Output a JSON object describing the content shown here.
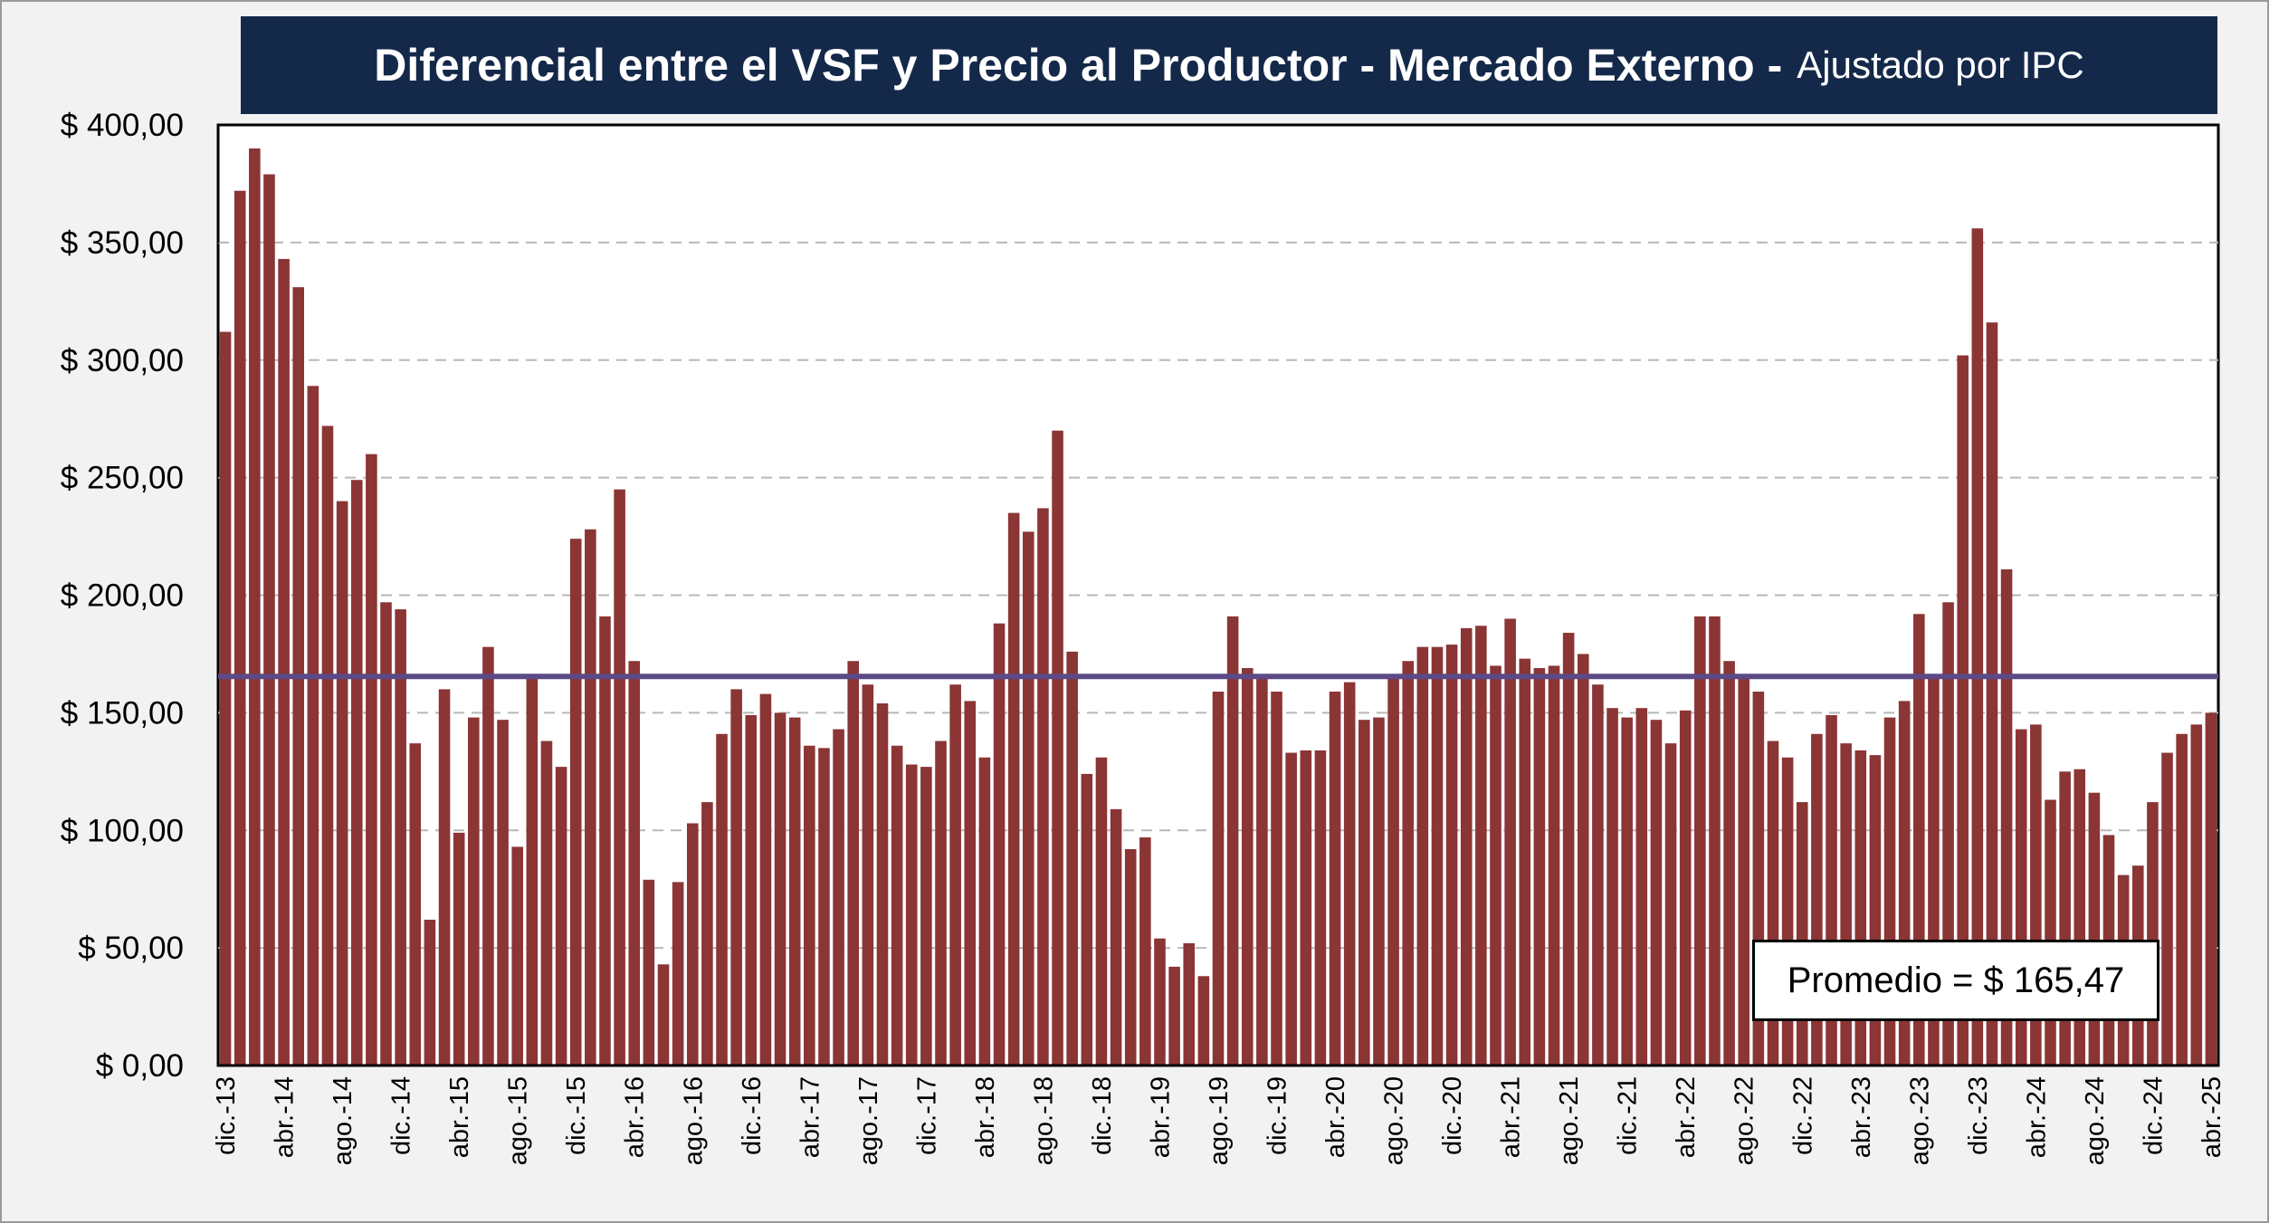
{
  "chart_data": {
    "type": "bar",
    "title": "Diferencial entre el VSF y Precio al Productor - Mercado Externo -",
    "subtitle": "Ajustado por IPC",
    "ylim": [
      0,
      400
    ],
    "y_ticks": [
      "$ 0,00",
      "$ 50,00",
      "$ 100,00",
      "$ 150,00",
      "$ 200,00",
      "$ 250,00",
      "$ 300,00",
      "$ 350,00",
      "$ 400,00"
    ],
    "x_tick_labels": [
      "dic.-13",
      "abr.-14",
      "ago.-14",
      "dic.-14",
      "abr.-15",
      "ago.-15",
      "dic.-15",
      "abr.-16",
      "ago.-16",
      "dic.-16",
      "abr.-17",
      "ago.-17",
      "dic.-17",
      "abr.-18",
      "ago.-18",
      "dic.-18",
      "abr.-19",
      "ago.-19",
      "dic.-19",
      "abr.-20",
      "ago.-20",
      "dic.-20",
      "abr.-21",
      "ago.-21",
      "dic.-21",
      "abr.-22",
      "ago.-22",
      "dic.-22",
      "abr.-23",
      "ago.-23",
      "dic.-23",
      "abr.-24",
      "ago.-24",
      "dic.-24",
      "abr.-25"
    ],
    "grid": true,
    "bar_color": "#8b3535",
    "average_line_color": "#5b4a86",
    "average": 165.47,
    "average_label": "Promedio = $ 165,47",
    "series": [
      {
        "values": [
          312,
          372,
          390,
          379,
          343,
          331,
          289,
          272,
          240,
          249,
          260,
          197,
          194,
          137,
          62,
          160,
          99,
          148,
          178,
          147,
          93,
          165,
          138,
          127,
          224,
          228,
          191,
          245,
          172,
          79,
          43,
          78,
          103,
          112,
          141,
          160,
          149,
          158,
          150,
          148,
          136,
          135,
          143,
          172,
          162,
          154,
          136,
          128,
          127,
          138,
          162,
          155,
          131,
          188,
          235,
          227,
          237,
          270,
          176,
          124,
          131,
          109,
          92,
          97,
          54,
          42,
          52,
          38,
          159,
          191,
          169,
          166,
          159,
          133,
          134,
          134,
          159,
          163,
          147,
          148,
          166,
          172,
          178,
          178,
          179,
          186,
          187,
          170,
          190,
          173,
          169,
          170,
          184,
          175,
          162,
          152,
          148,
          152,
          147,
          137,
          151,
          191,
          191,
          172,
          165,
          159,
          138,
          131,
          112,
          141,
          149,
          137,
          134,
          132,
          148,
          155,
          192,
          166,
          197,
          302,
          356,
          316,
          211,
          143,
          145,
          113,
          125,
          126,
          116,
          98,
          81,
          85,
          112,
          133,
          141,
          145,
          150
        ]
      }
    ]
  }
}
